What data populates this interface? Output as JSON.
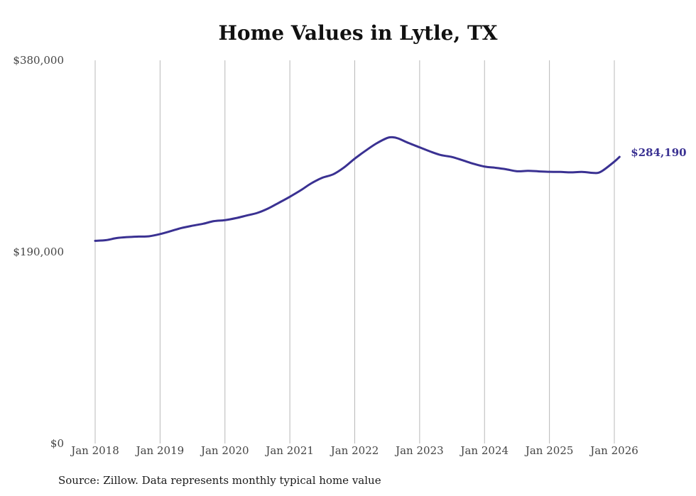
{
  "chart_data": {
    "type": "line",
    "title": "Home Values in Lytle, TX",
    "xlabel": "",
    "ylabel": "",
    "source": "Source: Zillow. Data represents monthly typical home value",
    "ylim": [
      0,
      380000
    ],
    "yticks": [
      {
        "value": 0,
        "label": "$0"
      },
      {
        "value": 190000,
        "label": "$190,000"
      },
      {
        "value": 380000,
        "label": "$380,000"
      }
    ],
    "xlim": [
      2018.0,
      2026.0
    ],
    "xticks": [
      {
        "value": 2018,
        "label": "Jan 2018"
      },
      {
        "value": 2019,
        "label": "Jan 2019"
      },
      {
        "value": 2020,
        "label": "Jan 2020"
      },
      {
        "value": 2021,
        "label": "Jan 2021"
      },
      {
        "value": 2022,
        "label": "Jan 2022"
      },
      {
        "value": 2023,
        "label": "Jan 2023"
      },
      {
        "value": 2024,
        "label": "Jan 2024"
      },
      {
        "value": 2025,
        "label": "Jan 2025"
      },
      {
        "value": 2026,
        "label": "Jan 2026"
      }
    ],
    "grid": "vertical",
    "line_color": "#3a3192",
    "end_label": "$284,190",
    "series": [
      {
        "name": "Typical home value",
        "x": [
          2018.0,
          2018.17,
          2018.33,
          2018.5,
          2018.67,
          2018.83,
          2019.0,
          2019.17,
          2019.33,
          2019.5,
          2019.67,
          2019.83,
          2020.0,
          2020.17,
          2020.33,
          2020.5,
          2020.67,
          2020.83,
          2021.0,
          2021.17,
          2021.33,
          2021.5,
          2021.67,
          2021.83,
          2022.0,
          2022.17,
          2022.33,
          2022.5,
          2022.58,
          2022.67,
          2022.83,
          2023.0,
          2023.17,
          2023.33,
          2023.5,
          2023.67,
          2023.83,
          2024.0,
          2024.17,
          2024.33,
          2024.5,
          2024.67,
          2024.83,
          2025.0,
          2025.17,
          2025.33,
          2025.5,
          2025.67,
          2025.75,
          2025.83,
          2026.0,
          2026.08
        ],
        "values": [
          201000,
          201700,
          203700,
          204700,
          205200,
          205500,
          207700,
          210700,
          213700,
          216000,
          218000,
          220500,
          221500,
          223500,
          226000,
          228700,
          233200,
          238700,
          244700,
          251200,
          258000,
          263500,
          267000,
          273500,
          282500,
          290500,
          297400,
          303000,
          303700,
          302500,
          298000,
          293700,
          289400,
          286000,
          284100,
          280700,
          277400,
          274600,
          273400,
          272000,
          270000,
          270400,
          269900,
          269400,
          269300,
          268900,
          269300,
          268400,
          268400,
          271000,
          279500,
          284190
        ]
      }
    ]
  }
}
